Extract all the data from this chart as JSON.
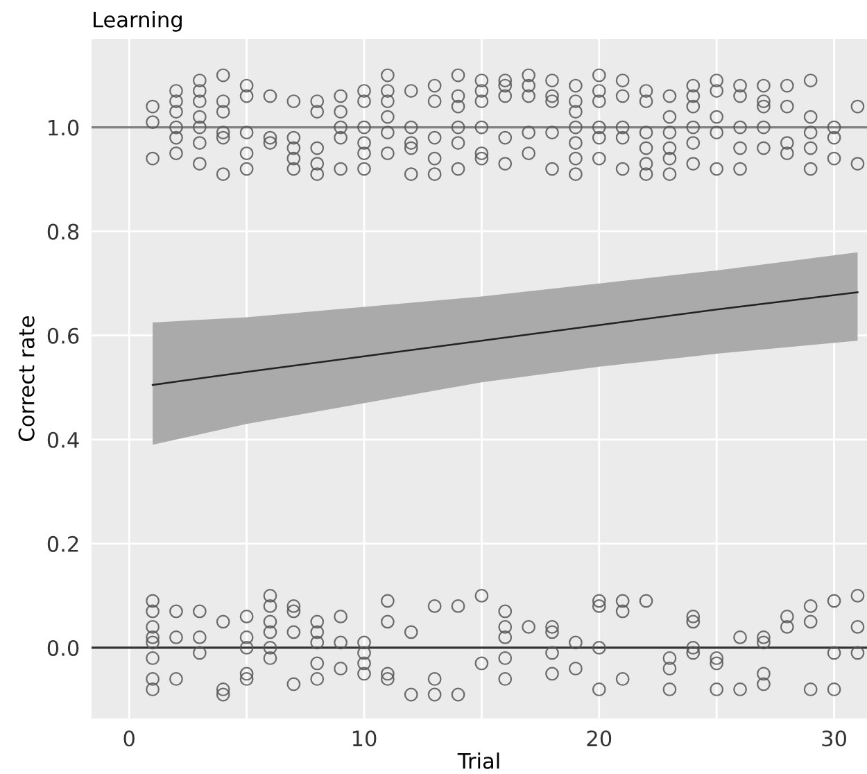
{
  "chart_data": {
    "type": "scatter",
    "title": "Learning",
    "xlabel": "Trial",
    "ylabel": "Correct rate",
    "xlim": [
      -1.6,
      31.4
    ],
    "ylim": [
      -0.136,
      1.17
    ],
    "xticks": [
      0,
      {
        "value": 5,
        "label": null
      },
      10,
      {
        "value": 15,
        "label": null
      },
      20,
      {
        "value": 25,
        "label": null
      },
      30
    ],
    "yticks": [
      {
        "value": 0,
        "label": "0.0"
      },
      {
        "value": 0.2,
        "label": "0.2"
      },
      {
        "value": 0.4,
        "label": "0.4"
      },
      {
        "value": 0.6,
        "label": "0.6"
      },
      {
        "value": 0.8,
        "label": "0.8"
      },
      {
        "value": 1,
        "label": "1.0"
      }
    ],
    "grid": true,
    "legend": false,
    "marker": "circle",
    "ref_lines": [
      {
        "axis": "y",
        "value": 1,
        "color": "#808080"
      },
      {
        "axis": "y",
        "value": 0,
        "color": "#333333"
      }
    ],
    "series": [
      {
        "color": "#555555",
        "x": [
          1,
          1,
          1,
          2,
          2,
          2,
          2,
          2,
          2,
          3,
          3,
          3,
          3,
          3,
          3,
          3,
          4,
          4,
          4,
          4,
          4,
          4,
          5,
          5,
          5,
          5,
          5,
          6,
          6,
          6,
          7,
          7,
          7,
          7,
          7,
          8,
          8,
          8,
          8,
          8,
          9,
          9,
          9,
          9,
          9,
          10,
          10,
          10,
          10,
          10,
          10,
          11,
          11,
          11,
          11,
          11,
          11,
          12,
          12,
          12,
          12,
          12,
          13,
          13,
          13,
          13,
          13,
          14,
          14,
          14,
          14,
          14,
          14,
          15,
          15,
          15,
          15,
          15,
          15,
          16,
          16,
          16,
          16,
          16,
          17,
          17,
          17,
          17,
          17,
          18,
          18,
          18,
          18,
          18,
          19,
          19,
          19,
          19,
          19,
          19,
          19,
          20,
          20,
          20,
          20,
          20,
          20,
          21,
          21,
          21,
          21,
          21,
          22,
          22,
          22,
          22,
          22,
          22,
          23,
          23,
          23,
          23,
          23,
          23,
          24,
          24,
          24,
          24,
          24,
          24,
          25,
          25,
          25,
          25,
          25,
          26,
          26,
          26,
          26,
          26,
          27,
          27,
          27,
          27,
          27,
          28,
          28,
          28,
          28,
          29,
          29,
          29,
          29,
          29,
          30,
          30,
          30,
          31,
          31
        ],
        "values": [
          1.04,
          1.01,
          0.94,
          1.07,
          1.05,
          1.03,
          1.0,
          0.98,
          0.95,
          1.09,
          1.07,
          1.05,
          1.02,
          1.0,
          0.97,
          0.93,
          1.1,
          1.05,
          1.03,
          0.99,
          0.98,
          0.91,
          1.08,
          1.06,
          0.99,
          0.95,
          0.92,
          1.06,
          0.98,
          0.97,
          1.05,
          0.98,
          0.96,
          0.94,
          0.92,
          1.05,
          1.03,
          0.96,
          0.93,
          0.91,
          1.06,
          1.03,
          1.0,
          0.98,
          0.92,
          1.07,
          1.05,
          1.0,
          0.97,
          0.95,
          0.92,
          1.1,
          1.07,
          1.05,
          1.02,
          0.99,
          0.95,
          1.07,
          1.0,
          0.97,
          0.96,
          0.91,
          1.08,
          1.05,
          0.98,
          0.94,
          0.91,
          1.1,
          1.06,
          1.04,
          1.0,
          0.97,
          0.92,
          1.09,
          1.07,
          1.05,
          1.0,
          0.95,
          0.94,
          1.09,
          1.08,
          1.06,
          0.98,
          0.93,
          1.1,
          1.08,
          1.06,
          0.99,
          0.95,
          1.09,
          1.06,
          1.05,
          0.99,
          0.92,
          1.08,
          1.05,
          1.03,
          1.0,
          0.97,
          0.94,
          0.91,
          1.1,
          1.07,
          1.05,
          1.0,
          0.98,
          0.94,
          1.09,
          1.06,
          1.0,
          0.98,
          0.92,
          1.07,
          1.05,
          0.99,
          0.96,
          0.93,
          0.91,
          1.06,
          1.02,
          0.99,
          0.96,
          0.94,
          0.91,
          1.08,
          1.06,
          1.04,
          1.0,
          0.97,
          0.93,
          1.09,
          1.07,
          1.02,
          0.99,
          0.92,
          1.08,
          1.06,
          1.0,
          0.96,
          0.92,
          1.08,
          1.05,
          1.04,
          1.0,
          0.96,
          1.08,
          1.04,
          0.97,
          0.95,
          1.09,
          1.02,
          0.99,
          0.96,
          0.92,
          1.0,
          0.98,
          0.94,
          1.04,
          0.93
        ]
      },
      {
        "color": "#555555",
        "x": [
          1,
          1,
          1,
          1,
          1,
          1,
          1,
          1,
          2,
          2,
          2,
          3,
          3,
          3,
          4,
          4,
          4,
          5,
          5,
          5,
          5,
          5,
          6,
          6,
          6,
          6,
          6,
          6,
          7,
          7,
          7,
          7,
          8,
          8,
          8,
          8,
          8,
          9,
          9,
          9,
          10,
          10,
          10,
          10,
          11,
          11,
          11,
          11,
          12,
          12,
          13,
          13,
          13,
          14,
          14,
          15,
          15,
          16,
          16,
          16,
          16,
          16,
          17,
          18,
          18,
          18,
          18,
          19,
          19,
          20,
          20,
          20,
          20,
          21,
          21,
          21,
          22,
          23,
          23,
          23,
          24,
          24,
          24,
          24,
          25,
          25,
          25,
          26,
          26,
          27,
          27,
          27,
          27,
          28,
          28,
          29,
          29,
          29,
          30,
          30,
          30,
          31,
          31,
          31
        ],
        "values": [
          0.09,
          0.07,
          0.04,
          0.02,
          0.01,
          -0.02,
          -0.06,
          -0.08,
          0.07,
          0.02,
          -0.06,
          0.07,
          0.02,
          -0.01,
          0.05,
          -0.08,
          -0.09,
          0.06,
          0.02,
          0.0,
          -0.05,
          -0.06,
          0.1,
          0.08,
          0.05,
          0.03,
          0.0,
          -0.02,
          0.08,
          0.07,
          0.03,
          -0.07,
          0.05,
          0.03,
          0.01,
          -0.03,
          -0.06,
          0.06,
          0.01,
          -0.04,
          0.01,
          -0.01,
          -0.03,
          -0.05,
          0.09,
          0.05,
          -0.05,
          -0.06,
          0.03,
          -0.09,
          0.08,
          -0.06,
          -0.09,
          0.08,
          -0.09,
          0.1,
          -0.03,
          0.07,
          0.04,
          0.02,
          -0.02,
          -0.06,
          0.04,
          0.04,
          0.03,
          -0.01,
          -0.05,
          0.01,
          -0.04,
          0.09,
          0.08,
          0.0,
          -0.08,
          0.09,
          0.07,
          -0.06,
          0.09,
          -0.02,
          -0.04,
          -0.08,
          0.06,
          0.05,
          0.0,
          -0.01,
          -0.02,
          -0.03,
          -0.08,
          0.02,
          -0.08,
          0.02,
          0.01,
          -0.05,
          -0.07,
          0.06,
          0.04,
          0.08,
          0.05,
          -0.08,
          0.09,
          -0.01,
          -0.08,
          0.1,
          0.04,
          -0.01
        ]
      },
      {
        "type": "line",
        "color": "#222222",
        "marker": "none",
        "x": [
          1,
          5,
          10,
          15,
          20,
          25,
          31
        ],
        "values": [
          0.505,
          0.53,
          0.56,
          0.59,
          0.62,
          0.65,
          0.683
        ],
        "lower": [
          0.39,
          0.43,
          0.47,
          0.51,
          0.54,
          0.565,
          0.59
        ],
        "upper": [
          0.625,
          0.635,
          0.655,
          0.675,
          0.7,
          0.725,
          0.76
        ]
      }
    ]
  }
}
